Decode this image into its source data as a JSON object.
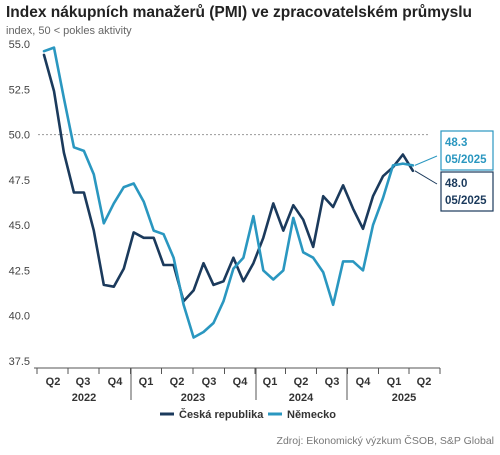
{
  "chart_data": {
    "type": "line",
    "title": "Index nákupních manažerů (PMI) ve zpracovatelském průmyslu",
    "subtitle": "index, 50 < pokles aktivity",
    "ylim": [
      37.5,
      55.0
    ],
    "yticks": [
      "55.0",
      "52.5",
      "50.0",
      "47.5",
      "45.0",
      "42.5",
      "40.0",
      "37.5"
    ],
    "reference_line": 50.0,
    "grid": false,
    "quarter_labels": [
      "Q2",
      "Q3",
      "Q4",
      "Q1",
      "Q2",
      "Q3",
      "Q4",
      "Q1",
      "Q2",
      "Q3",
      "Q4",
      "Q1",
      "Q2"
    ],
    "year_labels": [
      "2022",
      "2023",
      "2024",
      "2025"
    ],
    "legend_position": "bottom",
    "series": [
      {
        "name": "Česká republika",
        "color": "#1b3a5c",
        "values": [
          54.4,
          52.4,
          49.0,
          46.8,
          46.8,
          44.7,
          41.7,
          41.6,
          42.6,
          44.6,
          44.3,
          44.3,
          42.8,
          42.8,
          40.8,
          41.4,
          42.9,
          41.7,
          41.9,
          43.2,
          41.9,
          42.9,
          44.3,
          46.2,
          44.7,
          46.1,
          45.3,
          43.8,
          46.6,
          46.0,
          47.2,
          45.9,
          44.8,
          46.6,
          47.7,
          48.2,
          48.9,
          48.0
        ]
      },
      {
        "name": "Německo",
        "color": "#2a97c0",
        "values": [
          54.6,
          54.8,
          52.0,
          49.3,
          49.1,
          47.8,
          45.1,
          46.2,
          47.1,
          47.3,
          46.3,
          44.7,
          44.5,
          43.2,
          40.6,
          38.8,
          39.1,
          39.6,
          40.8,
          42.6,
          43.2,
          45.5,
          42.5,
          42.0,
          42.5,
          45.4,
          43.5,
          43.2,
          42.4,
          40.6,
          43.0,
          43.0,
          42.5,
          45.0,
          46.5,
          48.3,
          48.4,
          48.3
        ]
      }
    ],
    "annotations": [
      {
        "series": "Německo",
        "value": "48.3",
        "date": "05/2025"
      },
      {
        "series": "Česká republika",
        "value": "48.0",
        "date": "05/2025"
      }
    ],
    "source": "Zdroj: Ekonomický výzkum ČSOB, S&P Global"
  }
}
